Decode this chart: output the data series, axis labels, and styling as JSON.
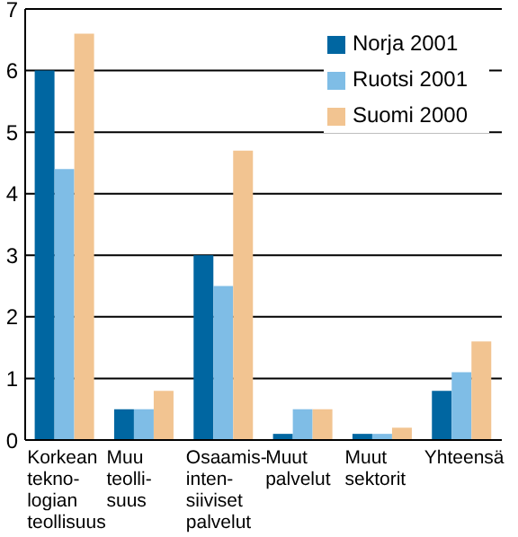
{
  "chart_data": {
    "type": "bar",
    "categories": [
      "Korkean\ntekno-\nlogian\nteollisuus",
      "Muu\nteolli-\nsuus",
      "Osaamis-\ninten-\nsiiviset\npalvelut",
      "Muut\npalvelut",
      "Muut\nsektorit",
      "Yhteensä"
    ],
    "series": [
      {
        "name": "Norja 2001",
        "color": "#0066a1",
        "values": [
          6,
          0.5,
          3,
          0.1,
          0.1,
          0.8
        ]
      },
      {
        "name": "Ruotsi 2001",
        "color": "#7fbde6",
        "values": [
          4.4,
          0.5,
          2.5,
          0.5,
          0.1,
          1.1
        ]
      },
      {
        "name": "Suomi 2000",
        "color": "#f2c491",
        "values": [
          6.6,
          0.8,
          4.7,
          0.5,
          0.2,
          1.6
        ]
      }
    ],
    "ylim": [
      0,
      7
    ],
    "yticks": [
      0,
      1,
      2,
      3,
      4,
      5,
      6,
      7
    ],
    "grid": "y",
    "legend": "top right"
  }
}
